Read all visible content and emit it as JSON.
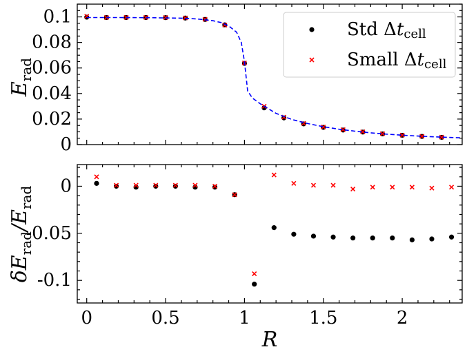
{
  "chart_data": [
    {
      "type": "scatter",
      "panel": "top",
      "ylabel": "E_rad",
      "ylabel_main": "E",
      "ylabel_sub": "rad",
      "xlim": [
        -0.06,
        2.38
      ],
      "ylim": [
        0,
        0.11
      ],
      "xticks": [
        0,
        0.5,
        1,
        1.5,
        2
      ],
      "yticks": [
        0,
        0.02,
        0.04,
        0.06,
        0.08,
        0.1
      ],
      "ytick_labels": [
        "0",
        "0.02",
        "0.04",
        "0.06",
        "0.08",
        "0.1"
      ],
      "legend": {
        "placement": "top-right",
        "entries": [
          {
            "label_prefix": "Std Δ",
            "label_t": "t",
            "label_sub": "cell"
          },
          {
            "label_prefix": "Small Δ",
            "label_t": "t",
            "label_sub": "cell"
          }
        ]
      },
      "series": [
        {
          "name": "Std Δt_cell",
          "marker": "circle",
          "color": "#000000",
          "x": [
            0,
            0.125,
            0.25,
            0.375,
            0.5,
            0.625,
            0.75,
            0.875,
            1.0,
            1.125,
            1.25,
            1.375,
            1.5,
            1.625,
            1.75,
            1.875,
            2.0,
            2.125,
            2.25
          ],
          "y": [
            0.0998,
            0.0995,
            0.0995,
            0.0995,
            0.0994,
            0.0991,
            0.098,
            0.0938,
            0.0636,
            0.0288,
            0.0209,
            0.0162,
            0.0135,
            0.0114,
            0.0098,
            0.0084,
            0.0073,
            0.0064,
            0.0057
          ]
        },
        {
          "name": "Small Δt_cell",
          "marker": "x",
          "color": "#ff0000",
          "x": [
            0,
            0.125,
            0.25,
            0.375,
            0.5,
            0.625,
            0.75,
            0.875,
            1.0,
            1.125,
            1.25,
            1.375,
            1.5,
            1.625,
            1.75,
            1.875,
            2.0,
            2.125,
            2.25
          ],
          "y": [
            0.1005,
            0.0995,
            0.0996,
            0.0996,
            0.0995,
            0.0992,
            0.0981,
            0.0936,
            0.0639,
            0.03,
            0.0215,
            0.0166,
            0.0138,
            0.0117,
            0.01,
            0.0085,
            0.0074,
            0.0065,
            0.0058
          ]
        },
        {
          "name": "",
          "style": "dashed-line",
          "color": "#0000ff",
          "x": [
            0,
            0.2,
            0.4,
            0.6,
            0.7,
            0.8,
            0.85,
            0.9,
            0.95,
            0.98,
            1.0,
            1.02,
            1.05,
            1.1,
            1.2,
            1.3,
            1.4,
            1.5,
            1.6,
            1.7,
            1.8,
            1.9,
            2.0,
            2.1,
            2.2,
            2.3,
            2.38
          ],
          "y": [
            0.0995,
            0.0995,
            0.0994,
            0.099,
            0.0984,
            0.097,
            0.0956,
            0.093,
            0.088,
            0.08,
            0.065,
            0.042,
            0.0365,
            0.032,
            0.0245,
            0.0197,
            0.0165,
            0.014,
            0.012,
            0.0105,
            0.0092,
            0.0082,
            0.0074,
            0.0067,
            0.0061,
            0.0056,
            0.0053
          ]
        }
      ]
    },
    {
      "type": "scatter",
      "panel": "bottom",
      "xlabel": "R",
      "ylabel": "δE_rad/E_rad",
      "xlim": [
        -0.06,
        2.38
      ],
      "ylim": [
        -0.124,
        0.023
      ],
      "xticks": [
        0,
        0.5,
        1,
        1.5,
        2
      ],
      "xtick_labels": [
        "0",
        "0.5",
        "1",
        "1.5",
        "2"
      ],
      "yticks": [
        0,
        -0.05,
        -0.1
      ],
      "ytick_labels": [
        "0",
        "-0.05",
        "-0.1"
      ],
      "series": [
        {
          "name": "Std Δt_cell",
          "marker": "circle",
          "color": "#000000",
          "x": [
            0.0625,
            0.1875,
            0.3125,
            0.4375,
            0.5625,
            0.6875,
            0.8125,
            0.9375,
            1.0625,
            1.1875,
            1.3125,
            1.4375,
            1.5625,
            1.6875,
            1.8125,
            1.9375,
            2.0625,
            2.1875,
            2.3125
          ],
          "y": [
            0.003,
            0.0,
            -0.001,
            0.0,
            0.0,
            -0.001,
            -0.001,
            -0.009,
            -0.104,
            -0.044,
            -0.051,
            -0.053,
            -0.054,
            -0.055,
            -0.055,
            -0.055,
            -0.057,
            -0.056,
            -0.054
          ]
        },
        {
          "name": "Small Δt_cell",
          "marker": "x",
          "color": "#ff0000",
          "x": [
            0.0625,
            0.1875,
            0.3125,
            0.4375,
            0.5625,
            0.6875,
            0.8125,
            0.9375,
            1.0625,
            1.1875,
            1.3125,
            1.4375,
            1.5625,
            1.6875,
            1.8125,
            1.9375,
            2.0625,
            2.1875,
            2.3125
          ],
          "y": [
            0.01,
            0.001,
            0.001,
            0.001,
            0.001,
            0.001,
            0.0,
            -0.009,
            -0.093,
            0.012,
            0.003,
            0.001,
            0.001,
            -0.003,
            -0.001,
            -0.001,
            -0.001,
            -0.002,
            -0.001
          ]
        }
      ]
    }
  ]
}
